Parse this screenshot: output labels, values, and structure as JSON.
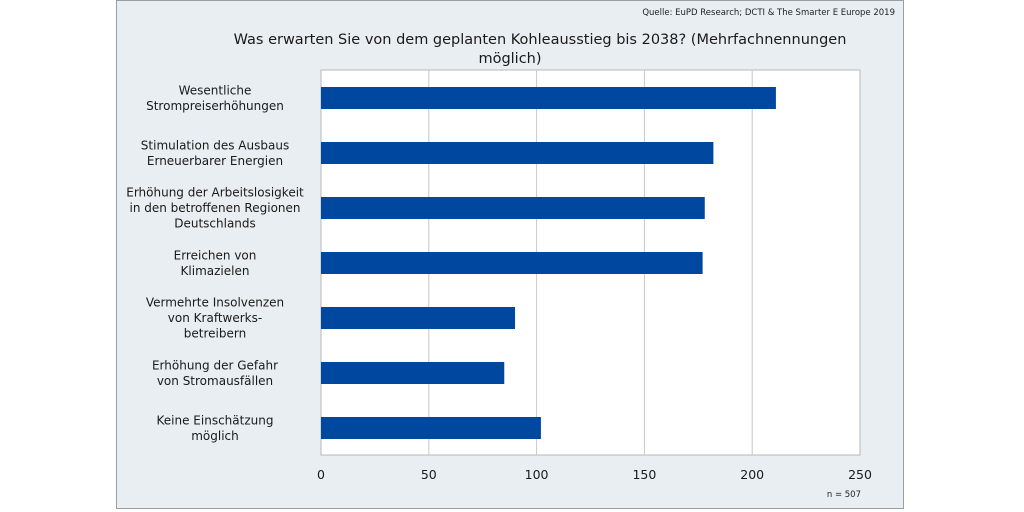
{
  "source": "Quelle: EuPD Research; DCTI & The Smarter E Europe 2019",
  "n_label": "n = 507",
  "colors": {
    "bar": "#0047a0",
    "grid": "#c8c8c8",
    "plot_bg": "#ffffff",
    "frame_bg": "#e9eef2"
  },
  "chart_data": {
    "type": "bar",
    "orientation": "horizontal",
    "title": "Was erwarten Sie von dem geplanten Kohleausstieg bis 2038? (Mehrfachnennungen möglich)",
    "title_lines": [
      "Was erwarten Sie von dem geplanten Kohleausstieg bis 2038? (Mehrfachnennungen",
      "möglich)"
    ],
    "categories": [
      [
        "Wesentliche",
        "Strompreiserhöhungen"
      ],
      [
        "Stimulation des Ausbaus",
        "Erneuerbarer Energien"
      ],
      [
        "Erhöhung der Arbeitslosigkeit",
        "in den betroffenen Regionen",
        "Deutschlands"
      ],
      [
        "Erreichen von",
        "Klimazielen"
      ],
      [
        "Vermehrte Insolvenzen",
        "von Kraftwerks-",
        "betreibern"
      ],
      [
        "Erhöhung der Gefahr",
        "von Stromausfällen"
      ],
      [
        "Keine Einschätzung",
        "möglich"
      ]
    ],
    "values": [
      211,
      182,
      178,
      177,
      90,
      85,
      102
    ],
    "xlabel": "",
    "ylabel": "",
    "xlim": [
      0,
      250
    ],
    "xticks": [
      0,
      50,
      100,
      150,
      200,
      250
    ],
    "grid": "vertical",
    "legend": "none",
    "annotation": "n = 507"
  }
}
